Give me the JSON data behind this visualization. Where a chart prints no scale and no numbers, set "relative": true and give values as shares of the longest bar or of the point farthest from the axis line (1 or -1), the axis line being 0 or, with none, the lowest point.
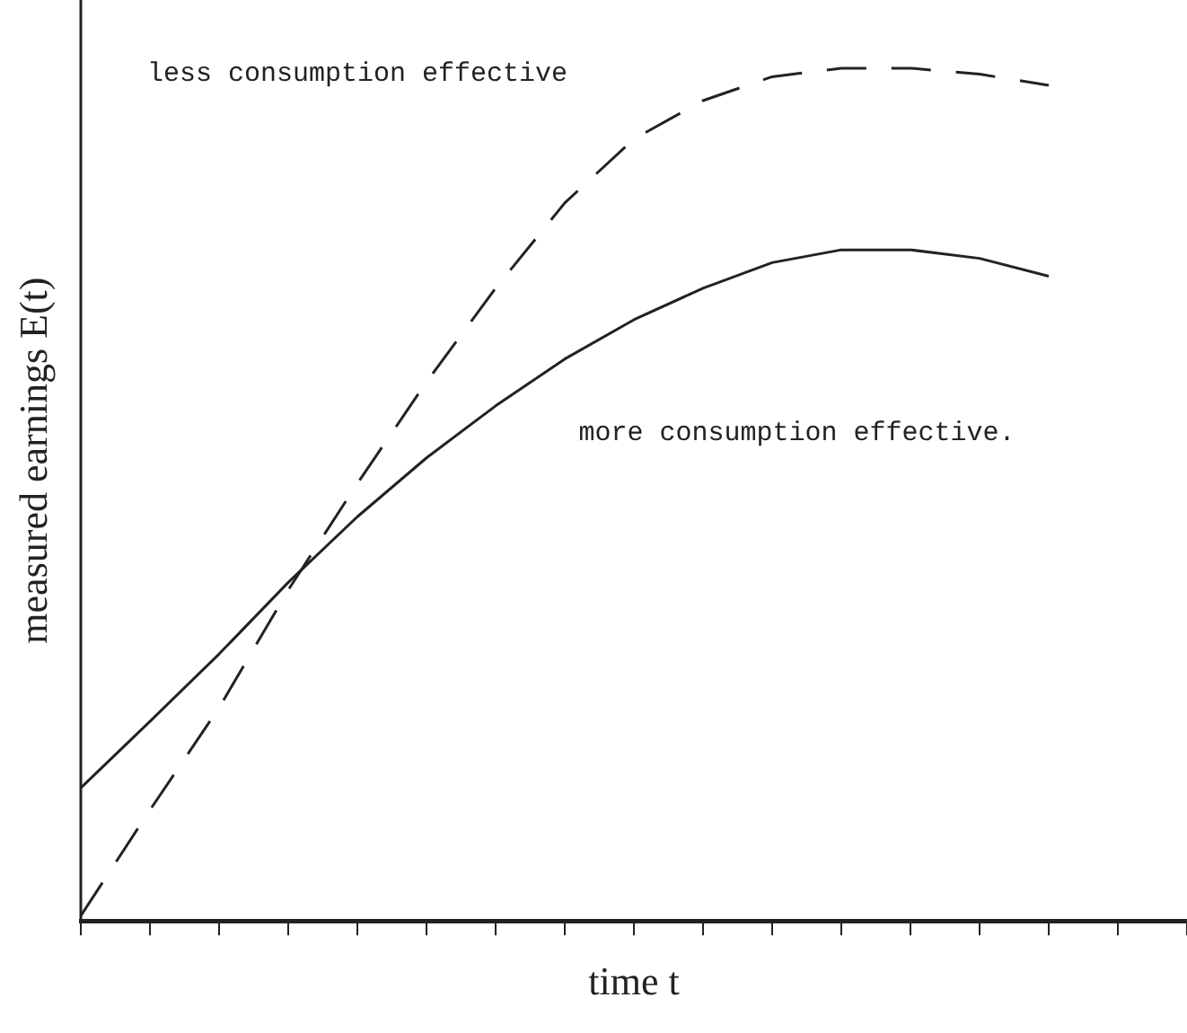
{
  "chart_data": {
    "type": "line",
    "relative": true,
    "xlabel": "time t",
    "ylabel": "measured earnings E(t)",
    "categories": [
      null,
      null,
      null,
      null,
      null,
      null,
      null,
      null,
      null,
      null,
      null,
      null,
      null,
      null,
      null,
      null,
      null
    ],
    "tick_labels": false,
    "grid": false,
    "legend": false,
    "marker": "none",
    "series": [
      {
        "color": "#222222",
        "line_style": "dashed",
        "values": [
          0.006,
          0.13,
          0.25,
          0.388,
          0.513,
          0.632,
          0.742,
          0.842,
          0.917,
          0.962,
          0.99,
          1,
          1,
          0.993,
          0.98,
          null,
          null
        ]
      },
      {
        "color": "#222222",
        "line_style": "solid",
        "values": [
          0.156,
          0.234,
          0.313,
          0.397,
          0.474,
          0.543,
          0.604,
          0.659,
          0.705,
          0.742,
          0.772,
          0.787,
          0.787,
          0.777,
          0.756,
          null,
          null
        ]
      }
    ],
    "annotations": [
      "less consumption effective",
      "more consumption effective."
    ]
  }
}
